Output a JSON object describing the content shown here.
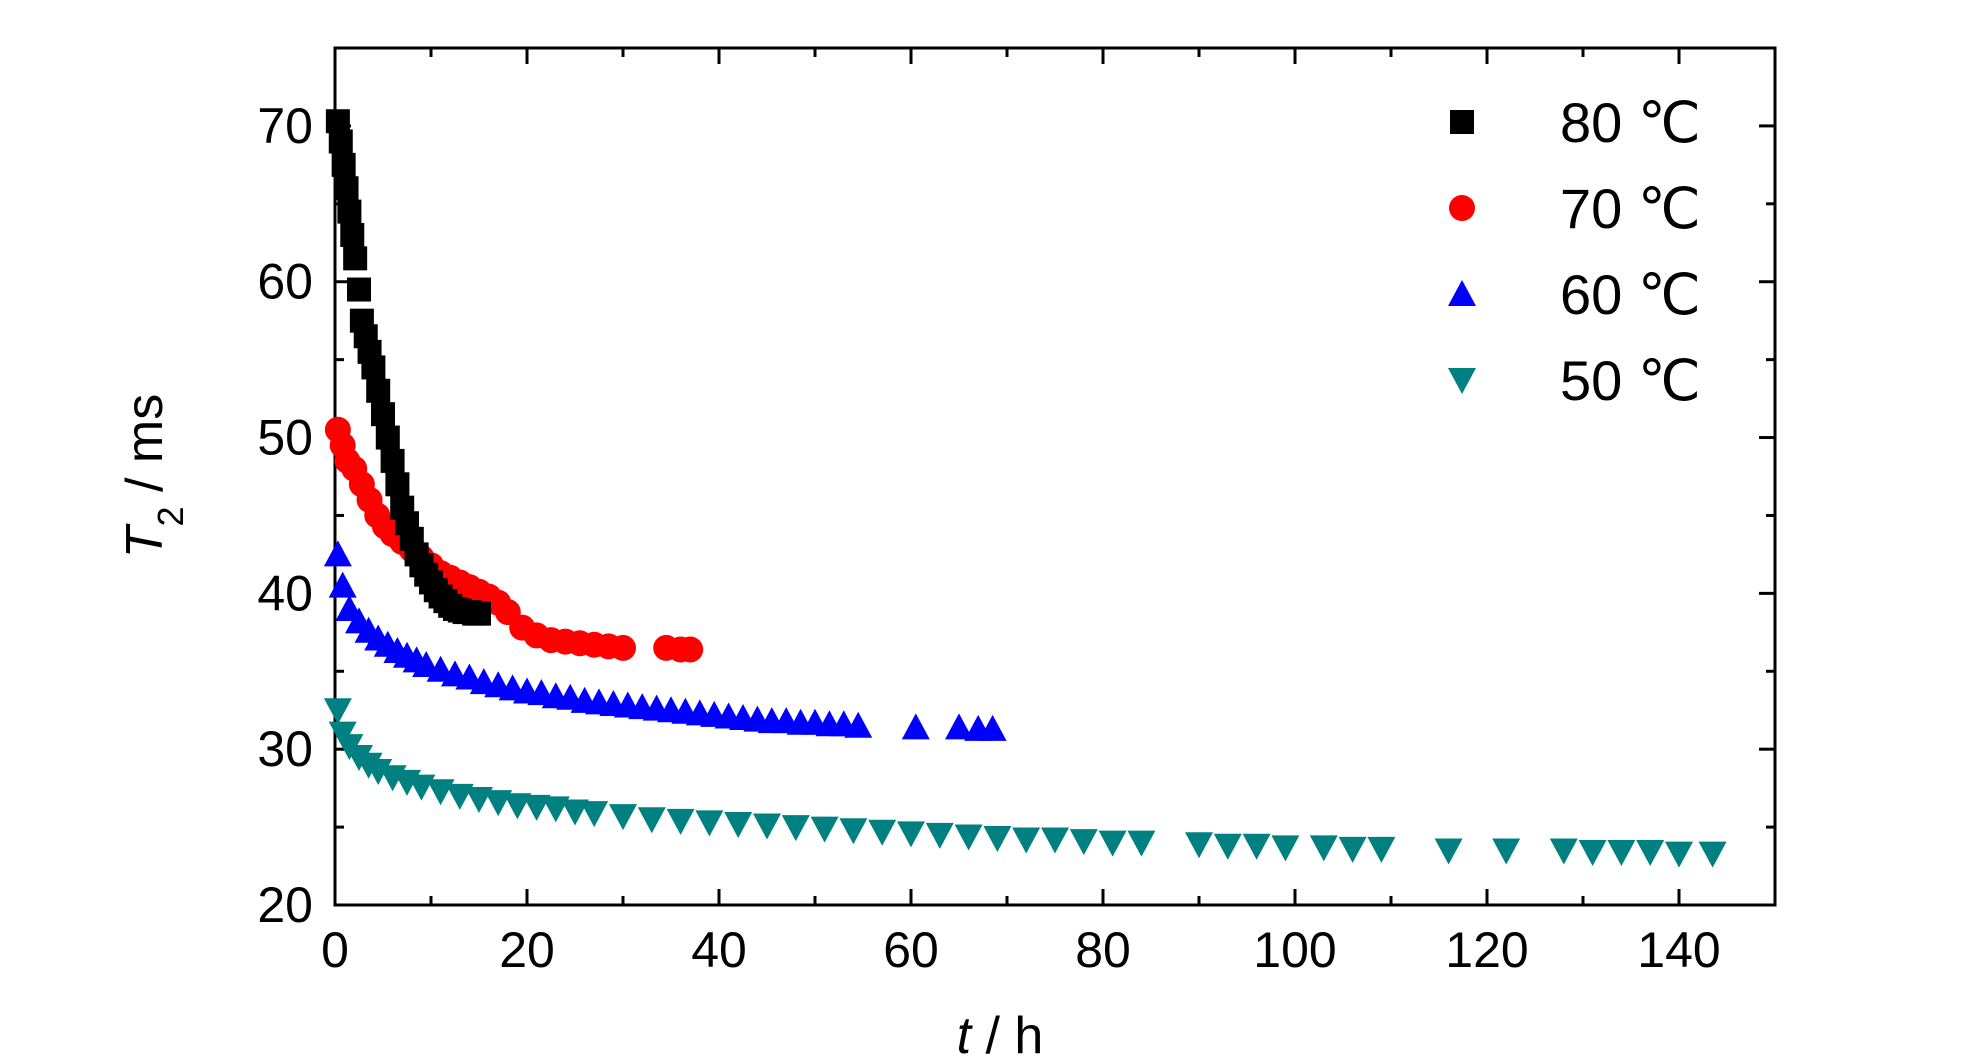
{
  "chart_data": {
    "type": "scatter",
    "title": "",
    "xlabel": {
      "var": "t",
      "unit": " / h"
    },
    "ylabel": {
      "var": "T",
      "sub": "2",
      "unit": " / ms"
    },
    "xlim": [
      0,
      150
    ],
    "ylim": [
      20,
      75
    ],
    "xticks": [
      0,
      20,
      40,
      60,
      80,
      100,
      120,
      140
    ],
    "yticks": [
      20,
      30,
      40,
      50,
      60,
      70
    ],
    "grid": false,
    "legend_position": "top-right",
    "series": [
      {
        "name": "80 ℃",
        "marker": "square",
        "color": "#000000",
        "x": [
          0.3,
          0.6,
          0.9,
          1.2,
          1.5,
          1.8,
          2.1,
          2.5,
          2.8,
          3.2,
          3.6,
          4.0,
          4.5,
          5.0,
          5.5,
          6.0,
          6.5,
          7.0,
          7.5,
          8.0,
          8.5,
          9.0,
          9.5,
          10.0,
          10.5,
          11.0,
          11.5,
          12.0,
          12.5,
          13.0,
          13.5,
          14.0,
          14.5,
          15.0
        ],
        "y": [
          70.3,
          69.0,
          67.5,
          66.0,
          64.5,
          63.0,
          61.5,
          59.5,
          57.5,
          56.5,
          55.5,
          54.5,
          53.0,
          51.5,
          50.0,
          48.5,
          47.0,
          45.5,
          44.5,
          43.5,
          42.5,
          41.8,
          41.2,
          40.7,
          40.2,
          39.8,
          39.5,
          39.2,
          39.0,
          38.9,
          38.8,
          38.8,
          38.7,
          38.7
        ]
      },
      {
        "name": "70 ℃",
        "marker": "circle",
        "color": "#ff0000",
        "x": [
          0.3,
          0.8,
          1.3,
          2.0,
          2.8,
          3.6,
          4.4,
          5.2,
          6.0,
          7.0,
          8.0,
          9.0,
          10.0,
          11.0,
          12.0,
          13.0,
          14.0,
          15.0,
          16.0,
          17.0,
          18.0,
          19.5,
          21.0,
          22.5,
          24.0,
          25.5,
          27.0,
          28.5,
          30.0,
          34.5,
          36.0,
          37.0
        ],
        "y": [
          50.5,
          49.5,
          48.5,
          48.0,
          47.0,
          46.0,
          45.0,
          44.3,
          43.8,
          43.3,
          42.8,
          42.3,
          41.8,
          41.3,
          41.0,
          40.7,
          40.4,
          40.1,
          39.8,
          39.4,
          38.8,
          37.8,
          37.3,
          37.0,
          36.9,
          36.8,
          36.7,
          36.6,
          36.5,
          36.5,
          36.4,
          36.4
        ]
      },
      {
        "name": "60 ℃",
        "marker": "triangle-up",
        "color": "#0000ff",
        "x": [
          0.3,
          0.8,
          1.5,
          2.5,
          3.5,
          4.5,
          5.5,
          6.5,
          7.5,
          8.5,
          9.5,
          11.0,
          12.5,
          14.0,
          15.5,
          17.0,
          18.5,
          20.0,
          21.5,
          23.0,
          24.5,
          26.0,
          27.5,
          29.0,
          30.5,
          32.0,
          33.5,
          35.0,
          36.5,
          38.0,
          39.5,
          41.0,
          42.5,
          44.0,
          45.5,
          47.0,
          48.5,
          50.0,
          51.5,
          53.0,
          54.5,
          60.5,
          65.0,
          67.0,
          68.5
        ],
        "y": [
          42.5,
          40.5,
          39.0,
          38.2,
          37.6,
          37.1,
          36.7,
          36.3,
          36.0,
          35.7,
          35.4,
          35.1,
          34.8,
          34.6,
          34.3,
          34.1,
          33.9,
          33.7,
          33.6,
          33.4,
          33.3,
          33.1,
          33.0,
          32.9,
          32.8,
          32.7,
          32.6,
          32.5,
          32.4,
          32.3,
          32.2,
          32.1,
          32.0,
          31.9,
          31.8,
          31.8,
          31.7,
          31.7,
          31.6,
          31.6,
          31.5,
          31.4,
          31.4,
          31.3,
          31.3
        ]
      },
      {
        "name": "50 ℃",
        "marker": "triangle-down",
        "color": "#008080",
        "x": [
          0.3,
          0.8,
          1.5,
          2.5,
          3.5,
          4.5,
          6.0,
          7.5,
          9.0,
          11.0,
          13.0,
          15.0,
          17.0,
          19.0,
          21.0,
          23.0,
          25.0,
          27.0,
          30.0,
          33.0,
          36.0,
          39.0,
          42.0,
          45.0,
          48.0,
          51.0,
          54.0,
          57.0,
          60.0,
          63.0,
          66.0,
          69.0,
          72.0,
          75.0,
          78.0,
          81.0,
          84.0,
          90.0,
          93.0,
          96.0,
          99.0,
          103.0,
          106.0,
          109.0,
          116.0,
          122.0,
          128.0,
          131.0,
          134.0,
          137.0,
          140.0,
          143.5
        ],
        "y": [
          32.5,
          31.0,
          30.2,
          29.5,
          29.0,
          28.6,
          28.2,
          27.9,
          27.6,
          27.3,
          27.0,
          26.8,
          26.6,
          26.4,
          26.3,
          26.2,
          26.0,
          25.9,
          25.7,
          25.5,
          25.4,
          25.3,
          25.2,
          25.1,
          25.0,
          24.9,
          24.8,
          24.7,
          24.6,
          24.5,
          24.4,
          24.3,
          24.2,
          24.2,
          24.1,
          24.0,
          24.0,
          23.9,
          23.8,
          23.8,
          23.7,
          23.7,
          23.6,
          23.6,
          23.5,
          23.5,
          23.5,
          23.4,
          23.4,
          23.4,
          23.3,
          23.3
        ]
      }
    ]
  }
}
